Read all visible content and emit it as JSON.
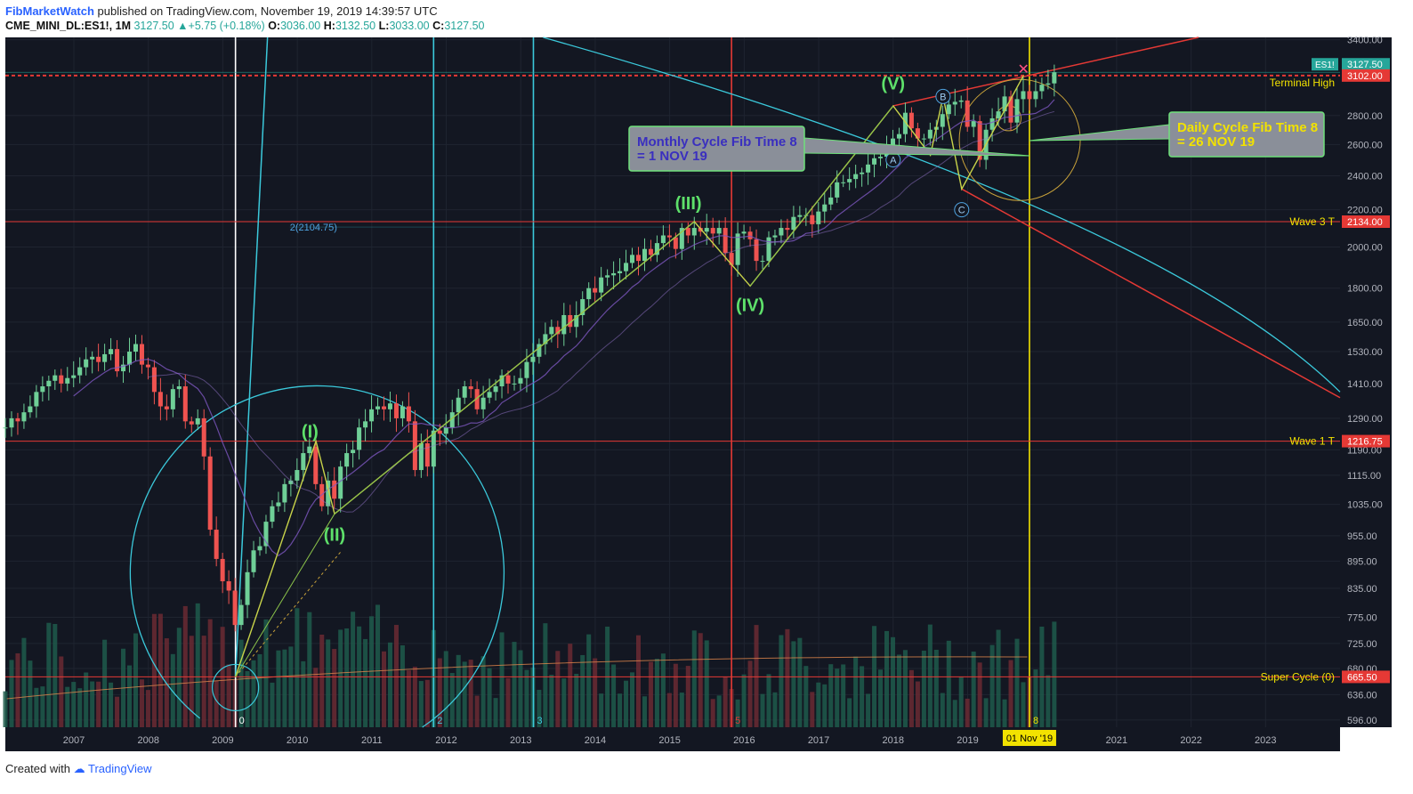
{
  "header": {
    "author": "FibMarketWatch",
    "published_text": "published on TradingView.com, November 19, 2019 14:39:57 UTC",
    "symbol": "CME_MINI_DL:ES1!, 1M",
    "last": "3127.50",
    "change": "+5.75 (+0.18%)",
    "o_label": "O:",
    "o": "3036.00",
    "h_label": "H:",
    "h": "3132.50",
    "l_label": "L:",
    "l": "3033.00",
    "c_label": "C:",
    "c": "3127.50"
  },
  "footer": {
    "created_with": "Created with",
    "brand": "TradingView"
  },
  "colors": {
    "background": "#131722",
    "bull": "#6fcf97",
    "bear": "#ef5350",
    "wave": "#c8d34a",
    "fib_cyan": "#3bc9db",
    "red_line": "#e53935",
    "yellow": "#f2e200"
  },
  "chart_data": {
    "type": "candlestick",
    "scale": "log",
    "symbol": "ES1!",
    "timeframe": "1M",
    "x_tick_labels": [
      "2007",
      "2008",
      "2009",
      "2010",
      "2011",
      "2012",
      "2013",
      "2014",
      "2015",
      "2016",
      "2017",
      "2018",
      "2019",
      "2021",
      "2022",
      "2023"
    ],
    "x_ticks": [
      2007,
      2008,
      2009,
      2010,
      2011,
      2012,
      2013,
      2014,
      2015,
      2016,
      2017,
      2018,
      2019,
      2021,
      2022,
      2023
    ],
    "xlim": [
      2006.08,
      2024.0
    ],
    "y_tick_labels": [
      "3400.00",
      "2800.00",
      "2600.00",
      "2400.00",
      "2200.00",
      "2000.00",
      "1800.00",
      "1650.00",
      "1530.00",
      "1410.00",
      "1290.00",
      "1190.00",
      "1115.00",
      "1035.00",
      "955.00",
      "895.00",
      "835.00",
      "775.00",
      "725.00",
      "680.00",
      "636.00",
      "596.00"
    ],
    "y_ticks": [
      3400,
      2800,
      2600,
      2400,
      2200,
      2000,
      1800,
      1650,
      1530,
      1410,
      1290,
      1190,
      1115,
      1035,
      955,
      895,
      835,
      775,
      725,
      680,
      636,
      596
    ],
    "ylim": [
      585,
      3420
    ],
    "price_tags": [
      {
        "label": "ES1!",
        "value": "3127.50",
        "price": 3127.5,
        "color": "#26a69a"
      },
      {
        "label": "",
        "value": "3102.00",
        "price": 3102,
        "color": "#e53935"
      },
      {
        "label": "",
        "value": "2134.00",
        "price": 2134,
        "color": "#e53935"
      },
      {
        "label": "",
        "value": "1216.75",
        "price": 1216.75,
        "color": "#e53935"
      },
      {
        "label": "",
        "value": "665.50",
        "price": 665.5,
        "color": "#e53935"
      }
    ],
    "horizontal_levels": [
      {
        "name": "Terminal High",
        "price": 3102,
        "style": "dashed"
      },
      {
        "name": "Wave 3 T",
        "price": 2134,
        "style": "solid"
      },
      {
        "name": "Wave 1 T",
        "price": 1216.75,
        "style": "solid"
      },
      {
        "name": "Super Cycle (0)",
        "price": 665.5,
        "style": "solid"
      }
    ],
    "level_label_2": "2(2104.75)",
    "level_2_price": 2104.75,
    "vertical_fib_times": [
      {
        "label": "0",
        "x": 2009.17,
        "color": "#ffffff"
      },
      {
        "label": "2",
        "x": 2011.83,
        "color": "#3bc9db"
      },
      {
        "label": "3",
        "x": 2013.17,
        "color": "#3bc9db"
      },
      {
        "label": "5",
        "x": 2015.83,
        "color": "#e53935"
      },
      {
        "label": "8",
        "x": 2019.83,
        "color": "#f2e200"
      }
    ],
    "date_marker": "01 Nov '19",
    "date_marker_x": 2019.83,
    "wave_labels": [
      {
        "label": "(I)",
        "x": 2010.17,
        "price": 1190
      },
      {
        "label": "(II)",
        "x": 2010.5,
        "price": 1000
      },
      {
        "label": "(III)",
        "x": 2015.25,
        "price": 2134
      },
      {
        "label": "(IV)",
        "x": 2016.08,
        "price": 1800
      },
      {
        "label": "(V)",
        "x": 2018.0,
        "price": 2900
      }
    ],
    "abc_labels": [
      {
        "label": "A",
        "x": 2018.0,
        "price": 2500
      },
      {
        "label": "B",
        "x": 2018.67,
        "price": 2940
      },
      {
        "label": "C",
        "x": 2018.92,
        "price": 2200
      }
    ],
    "callouts": [
      {
        "name": "monthly",
        "line1": "Monthly Cycle Fib Time 8",
        "line2": "= 1 NOV 19"
      },
      {
        "name": "daily",
        "line1": "Daily Cycle Fib Time 8",
        "line2": "= 26 NOV 19"
      }
    ],
    "monthly_close": [
      1260,
      1290,
      1280,
      1310,
      1330,
      1380,
      1400,
      1420,
      1440,
      1410,
      1430,
      1440,
      1470,
      1500,
      1510,
      1490,
      1520,
      1540,
      1455,
      1480,
      1530,
      1560,
      1480,
      1470,
      1380,
      1330,
      1320,
      1390,
      1400,
      1280,
      1270,
      1290,
      1170,
      970,
      900,
      850,
      830,
      760,
      800,
      870,
      920,
      930,
      990,
      1030,
      1040,
      1090,
      1100,
      1130,
      1180,
      1200,
      1090,
      1030,
      1100,
      1050,
      1140,
      1180,
      1190,
      1260,
      1280,
      1320,
      1330,
      1320,
      1340,
      1290,
      1330,
      1280,
      1130,
      1210,
      1140,
      1250,
      1240,
      1260,
      1310,
      1360,
      1400,
      1390,
      1320,
      1360,
      1380,
      1400,
      1440,
      1410,
      1410,
      1430,
      1490,
      1510,
      1560,
      1600,
      1630,
      1600,
      1680,
      1630,
      1680,
      1750,
      1800,
      1780,
      1850,
      1860,
      1870,
      1880,
      1920,
      1960,
      1930,
      1990,
      1960,
      2020,
      2060,
      2050,
      1990,
      2100,
      2060,
      2100,
      2080,
      2100,
      2070,
      2100,
      1970,
      1910,
      2070,
      2080,
      2040,
      1930,
      1930,
      2050,
      2060,
      2100,
      2090,
      2160,
      2170,
      2170,
      2120,
      2190,
      2230,
      2270,
      2360,
      2360,
      2380,
      2410,
      2420,
      2470,
      2510,
      2520,
      2570,
      2640,
      2670,
      2820,
      2710,
      2640,
      2640,
      2700,
      2720,
      2810,
      2880,
      2900,
      2910,
      2720,
      2760,
      2500,
      2700,
      2780,
      2830,
      2940,
      2750,
      2920,
      2980,
      2920,
      2980,
      3030,
      3040,
      3127.5
    ],
    "wave_path": [
      [
        2009.17,
        665.5
      ],
      [
        2010.25,
        1216.75
      ],
      [
        2010.5,
        1010
      ],
      [
        2015.33,
        2134
      ],
      [
        2016.08,
        1810
      ],
      [
        2018.0,
        2870
      ],
      [
        2018.5,
        2530
      ],
      [
        2018.67,
        2940
      ],
      [
        2018.92,
        2320
      ],
      [
        2019.75,
        3102
      ]
    ]
  }
}
